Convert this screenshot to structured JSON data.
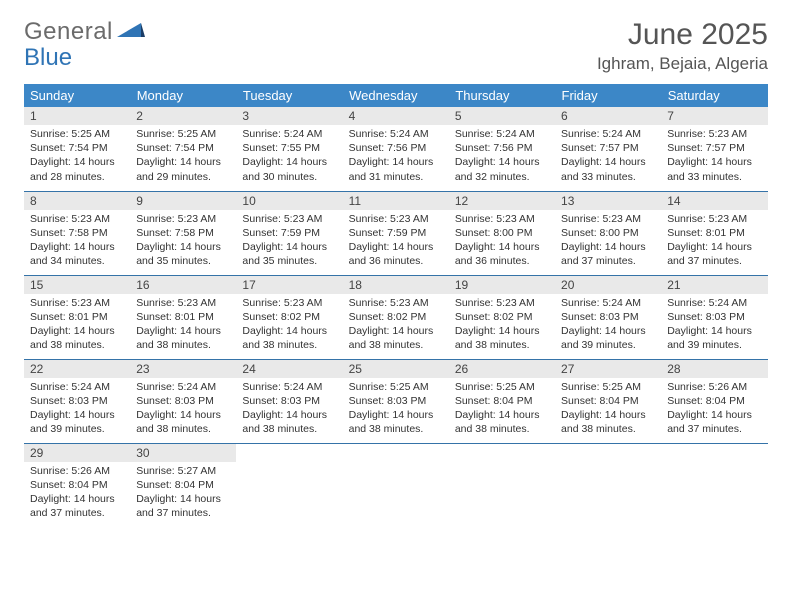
{
  "logo": {
    "text1": "General",
    "text2": "Blue"
  },
  "title": "June 2025",
  "location": "Ighram, Bejaia, Algeria",
  "colors": {
    "header_bg": "#3c87c7",
    "header_text": "#ffffff",
    "daynum_bg": "#e9e9e9",
    "row_border": "#3573a8",
    "logo_gray": "#6b6b6b",
    "logo_blue": "#2f74b5"
  },
  "weekdays": [
    "Sunday",
    "Monday",
    "Tuesday",
    "Wednesday",
    "Thursday",
    "Friday",
    "Saturday"
  ],
  "days": [
    {
      "n": "1",
      "sr": "5:25 AM",
      "ss": "7:54 PM",
      "dl": "14 hours and 28 minutes."
    },
    {
      "n": "2",
      "sr": "5:25 AM",
      "ss": "7:54 PM",
      "dl": "14 hours and 29 minutes."
    },
    {
      "n": "3",
      "sr": "5:24 AM",
      "ss": "7:55 PM",
      "dl": "14 hours and 30 minutes."
    },
    {
      "n": "4",
      "sr": "5:24 AM",
      "ss": "7:56 PM",
      "dl": "14 hours and 31 minutes."
    },
    {
      "n": "5",
      "sr": "5:24 AM",
      "ss": "7:56 PM",
      "dl": "14 hours and 32 minutes."
    },
    {
      "n": "6",
      "sr": "5:24 AM",
      "ss": "7:57 PM",
      "dl": "14 hours and 33 minutes."
    },
    {
      "n": "7",
      "sr": "5:23 AM",
      "ss": "7:57 PM",
      "dl": "14 hours and 33 minutes."
    },
    {
      "n": "8",
      "sr": "5:23 AM",
      "ss": "7:58 PM",
      "dl": "14 hours and 34 minutes."
    },
    {
      "n": "9",
      "sr": "5:23 AM",
      "ss": "7:58 PM",
      "dl": "14 hours and 35 minutes."
    },
    {
      "n": "10",
      "sr": "5:23 AM",
      "ss": "7:59 PM",
      "dl": "14 hours and 35 minutes."
    },
    {
      "n": "11",
      "sr": "5:23 AM",
      "ss": "7:59 PM",
      "dl": "14 hours and 36 minutes."
    },
    {
      "n": "12",
      "sr": "5:23 AM",
      "ss": "8:00 PM",
      "dl": "14 hours and 36 minutes."
    },
    {
      "n": "13",
      "sr": "5:23 AM",
      "ss": "8:00 PM",
      "dl": "14 hours and 37 minutes."
    },
    {
      "n": "14",
      "sr": "5:23 AM",
      "ss": "8:01 PM",
      "dl": "14 hours and 37 minutes."
    },
    {
      "n": "15",
      "sr": "5:23 AM",
      "ss": "8:01 PM",
      "dl": "14 hours and 38 minutes."
    },
    {
      "n": "16",
      "sr": "5:23 AM",
      "ss": "8:01 PM",
      "dl": "14 hours and 38 minutes."
    },
    {
      "n": "17",
      "sr": "5:23 AM",
      "ss": "8:02 PM",
      "dl": "14 hours and 38 minutes."
    },
    {
      "n": "18",
      "sr": "5:23 AM",
      "ss": "8:02 PM",
      "dl": "14 hours and 38 minutes."
    },
    {
      "n": "19",
      "sr": "5:23 AM",
      "ss": "8:02 PM",
      "dl": "14 hours and 38 minutes."
    },
    {
      "n": "20",
      "sr": "5:24 AM",
      "ss": "8:03 PM",
      "dl": "14 hours and 39 minutes."
    },
    {
      "n": "21",
      "sr": "5:24 AM",
      "ss": "8:03 PM",
      "dl": "14 hours and 39 minutes."
    },
    {
      "n": "22",
      "sr": "5:24 AM",
      "ss": "8:03 PM",
      "dl": "14 hours and 39 minutes."
    },
    {
      "n": "23",
      "sr": "5:24 AM",
      "ss": "8:03 PM",
      "dl": "14 hours and 38 minutes."
    },
    {
      "n": "24",
      "sr": "5:24 AM",
      "ss": "8:03 PM",
      "dl": "14 hours and 38 minutes."
    },
    {
      "n": "25",
      "sr": "5:25 AM",
      "ss": "8:03 PM",
      "dl": "14 hours and 38 minutes."
    },
    {
      "n": "26",
      "sr": "5:25 AM",
      "ss": "8:04 PM",
      "dl": "14 hours and 38 minutes."
    },
    {
      "n": "27",
      "sr": "5:25 AM",
      "ss": "8:04 PM",
      "dl": "14 hours and 38 minutes."
    },
    {
      "n": "28",
      "sr": "5:26 AM",
      "ss": "8:04 PM",
      "dl": "14 hours and 37 minutes."
    },
    {
      "n": "29",
      "sr": "5:26 AM",
      "ss": "8:04 PM",
      "dl": "14 hours and 37 minutes."
    },
    {
      "n": "30",
      "sr": "5:27 AM",
      "ss": "8:04 PM",
      "dl": "14 hours and 37 minutes."
    }
  ],
  "labels": {
    "sunrise": "Sunrise:",
    "sunset": "Sunset:",
    "daylight": "Daylight:"
  }
}
